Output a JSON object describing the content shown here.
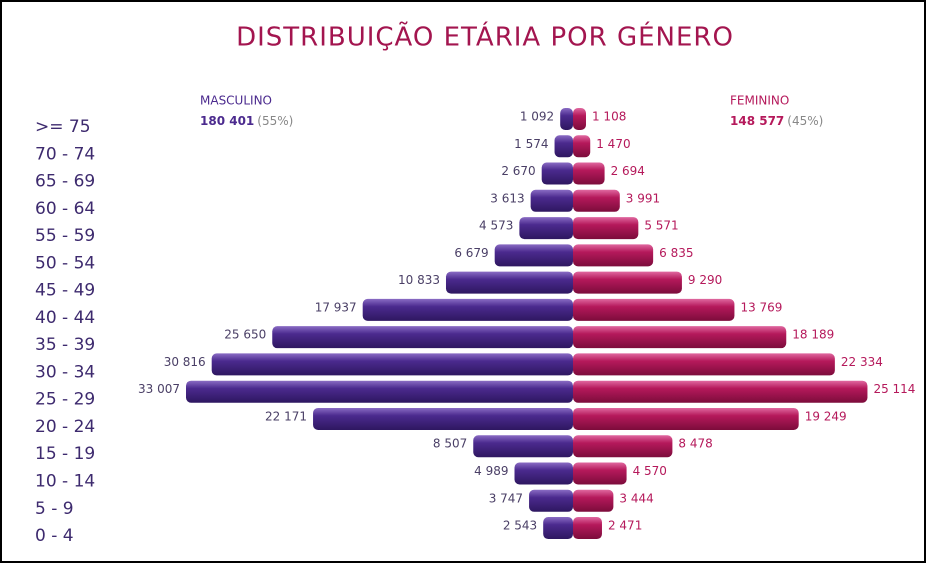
{
  "chart_data": {
    "type": "pyramid",
    "title": "DISTRIBUIÇÃO ETÁRIA POR GÉNERO",
    "categories": [
      ">= 75",
      "70 - 74",
      "65 - 69",
      "60 - 64",
      "55 - 59",
      "50 - 54",
      "45 - 49",
      "40 - 44",
      "35 - 39",
      "30 - 34",
      "25 - 29",
      "20 - 24",
      "15 - 19",
      "10 - 14",
      "5 - 9",
      "0 - 4"
    ],
    "series": [
      {
        "name": "MASCULINO",
        "color": "#4b2a8e",
        "label_color": "#4a3f66",
        "total_label": "180 401",
        "share_label": "(55%)",
        "values": [
          1092,
          1574,
          2670,
          3613,
          4573,
          6679,
          10833,
          17937,
          25650,
          30816,
          33007,
          22171,
          8507,
          4989,
          3747,
          2543
        ],
        "value_labels": [
          "1 092",
          "1 574",
          "2 670",
          "3 613",
          "4 573",
          "6 679",
          "10 833",
          "17 937",
          "25 650",
          "30 816",
          "33 007",
          "22 171",
          "8 507",
          "4 989",
          "3 747",
          "2 543"
        ]
      },
      {
        "name": "FEMININO",
        "color": "#b5195b",
        "label_color": "#b5195b",
        "total_label": "148 577",
        "share_label": "(45%)",
        "values": [
          1108,
          1470,
          2694,
          3991,
          5571,
          6835,
          9290,
          13769,
          18189,
          22334,
          25114,
          19249,
          8478,
          4570,
          3444,
          2471
        ],
        "value_labels": [
          "1 108",
          "1 470",
          "2 694",
          "3 991",
          "5 571",
          "6 835",
          "9 290",
          "13 769",
          "18 189",
          "22 334",
          "25 114",
          "19 249",
          "8 478",
          "4 570",
          "3 444",
          "2 471"
        ]
      }
    ]
  }
}
